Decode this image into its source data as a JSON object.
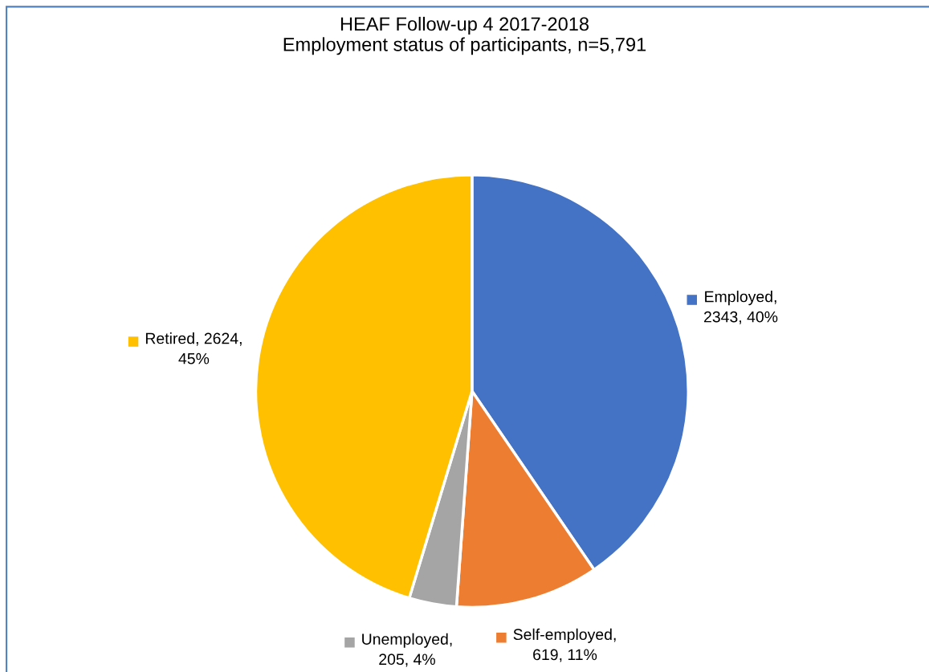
{
  "chart_data": {
    "type": "pie",
    "title": "HEAF Follow-up 4 2017-2018\nEmployment status of participants, n=5,791",
    "categories": [
      "Employed",
      "Self-employed",
      "Unemployed",
      "Retired"
    ],
    "values": [
      2343,
      619,
      205,
      2624
    ],
    "legend": "right",
    "colors": [
      "#4472c4",
      "#ed7d31",
      "#a5a5a5",
      "#ffc000"
    ],
    "value_labels": [
      ",\n2343, 40%",
      ",\n619, 11%",
      ",\n205, 4%",
      ", 2624,\n45%"
    ]
  }
}
